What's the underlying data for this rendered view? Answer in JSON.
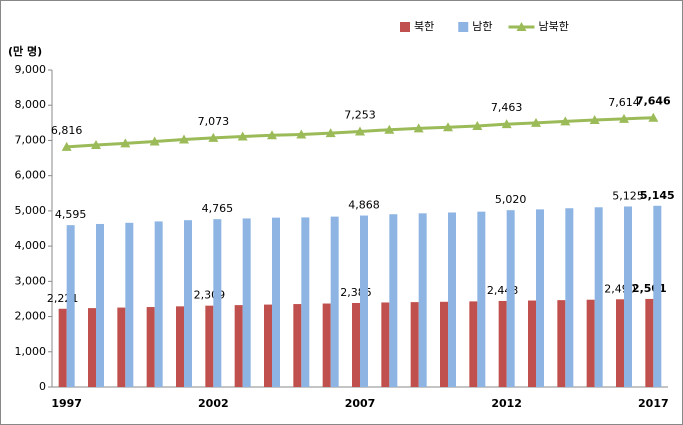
{
  "chart_data": {
    "type": "bar-line",
    "y_label": "(만 명)",
    "categories": [
      "1997",
      null,
      null,
      null,
      null,
      "2002",
      null,
      null,
      null,
      null,
      "2007",
      null,
      null,
      null,
      null,
      "2012",
      null,
      null,
      null,
      null,
      "2017"
    ],
    "series": [
      {
        "name": "북한",
        "type": "bar",
        "color": "#c0504d",
        "values": [
          2221,
          2240,
          2255,
          2270,
          2290,
          2309,
          2325,
          2340,
          2355,
          2370,
          2385,
          2400,
          2410,
          2419,
          2431,
          2443,
          2455,
          2466,
          2478,
          2490,
          2501
        ],
        "value_labels": [
          "2,221",
          null,
          null,
          null,
          null,
          "2,309",
          null,
          null,
          null,
          null,
          "2,385",
          null,
          null,
          null,
          null,
          "2,443",
          null,
          null,
          null,
          "2,490",
          "2,501"
        ]
      },
      {
        "name": "남한",
        "type": "bar",
        "color": "#8db4e2",
        "values": [
          4595,
          4629,
          4662,
          4701,
          4736,
          4765,
          4786,
          4808,
          4814,
          4837,
          4868,
          4905,
          4931,
          4955,
          4978,
          5020,
          5043,
          5075,
          5102,
          5125,
          5145
        ],
        "value_labels": [
          "4,595",
          null,
          null,
          null,
          null,
          "4,765",
          null,
          null,
          null,
          null,
          "4,868",
          null,
          null,
          null,
          null,
          "5,020",
          null,
          null,
          null,
          "5,125",
          "5,145"
        ]
      },
      {
        "name": "남북한",
        "type": "line",
        "color": "#9bbb59",
        "values": [
          6816,
          6869,
          6917,
          6971,
          7026,
          7073,
          7111,
          7148,
          7169,
          7207,
          7253,
          7305,
          7341,
          7374,
          7409,
          7463,
          7498,
          7541,
          7580,
          7614,
          7646
        ],
        "value_labels": [
          "6,816",
          null,
          null,
          null,
          null,
          "7,073",
          null,
          null,
          null,
          null,
          "7,253",
          null,
          null,
          null,
          null,
          "7,463",
          null,
          null,
          null,
          "7,614",
          "7,646"
        ]
      }
    ],
    "ylim": [
      0,
      9000
    ],
    "yticks": [
      {
        "value": 0,
        "label": "0"
      },
      {
        "value": 1000,
        "label": "1,000"
      },
      {
        "value": 2000,
        "label": "2,000"
      },
      {
        "value": 3000,
        "label": "3,000"
      },
      {
        "value": 4000,
        "label": "4,000"
      },
      {
        "value": 5000,
        "label": "5,000"
      },
      {
        "value": 6000,
        "label": "6,000"
      },
      {
        "value": 7000,
        "label": "7,000"
      },
      {
        "value": 8000,
        "label": "8,000"
      },
      {
        "value": 9000,
        "label": "9,000"
      }
    ],
    "grid": false,
    "legend": "top-right"
  }
}
